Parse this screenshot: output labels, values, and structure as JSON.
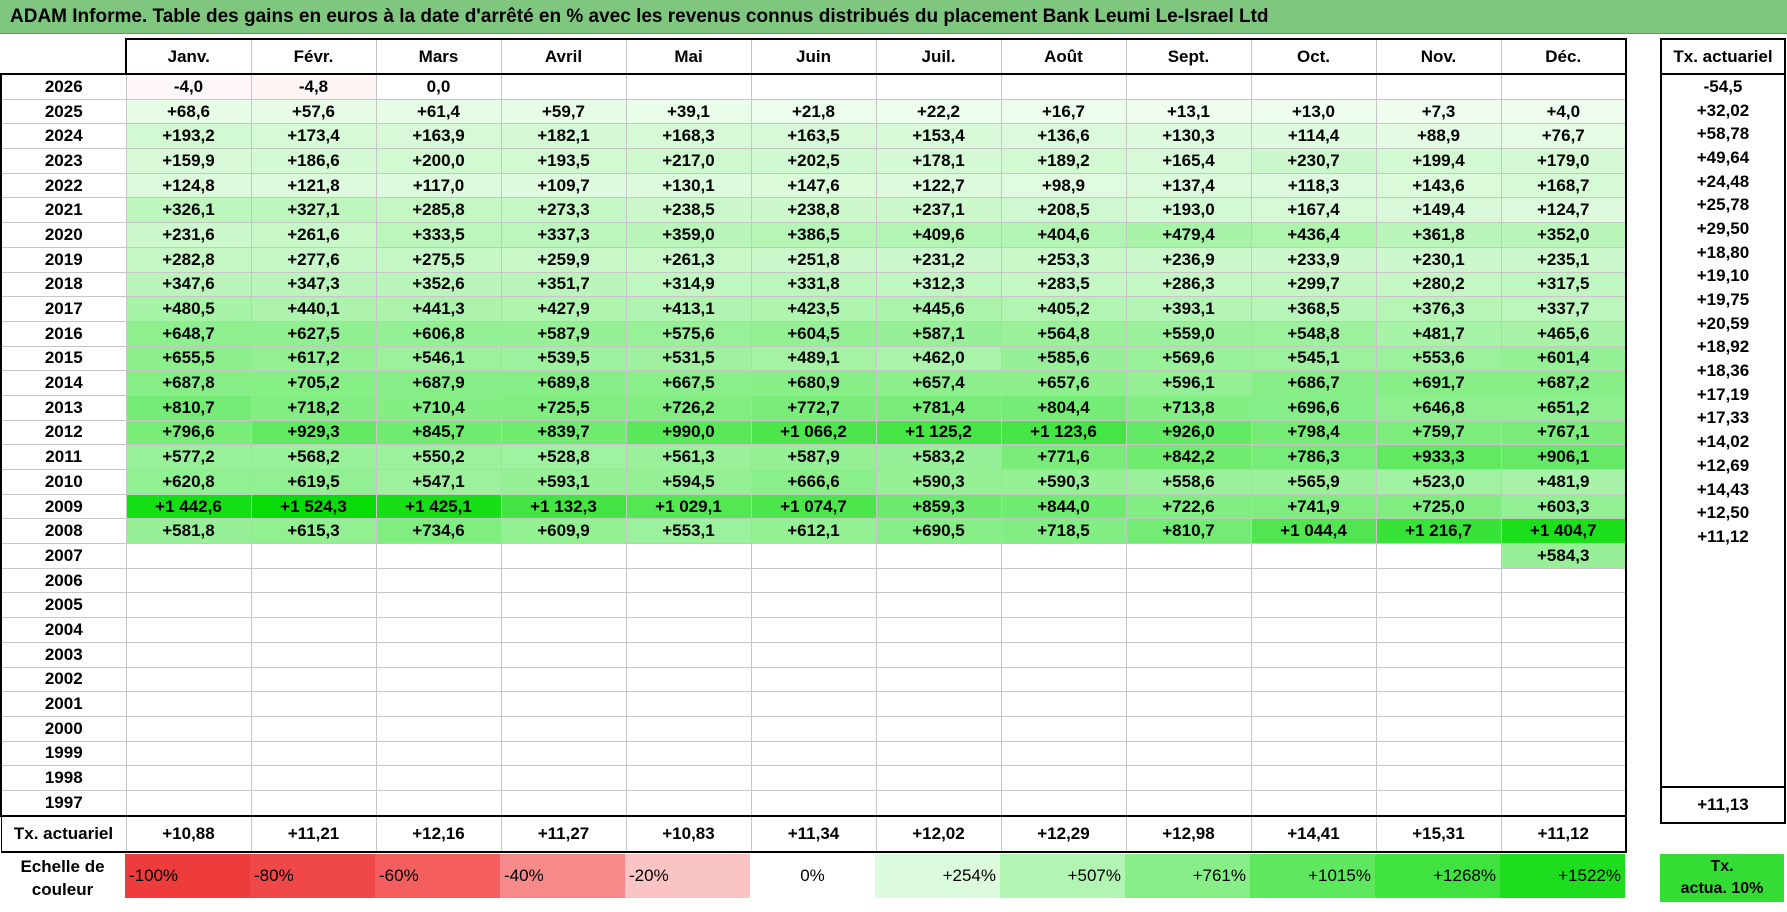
{
  "title": "ADAM Informe. Table des gains en euros à la date d'arrêté en % avec les revenus connus distribués du placement Bank Leumi Le-Israel Ltd",
  "months": [
    "Janv.",
    "Févr.",
    "Mars",
    "Avril",
    "Mai",
    "Juin",
    "Juil.",
    "Août",
    "Sept.",
    "Oct.",
    "Nov.",
    "Déc."
  ],
  "side_header": "Tx. actuariel",
  "rows": [
    {
      "year": "2026",
      "values": [
        "-4,0",
        "-4,8",
        "0,0",
        "",
        "",
        "",
        "",
        "",
        "",
        "",
        "",
        ""
      ],
      "rate": "-54,5"
    },
    {
      "year": "2025",
      "values": [
        "+68,6",
        "+57,6",
        "+61,4",
        "+59,7",
        "+39,1",
        "+21,8",
        "+22,2",
        "+16,7",
        "+13,1",
        "+13,0",
        "+7,3",
        "+4,0"
      ],
      "rate": "+32,02"
    },
    {
      "year": "2024",
      "values": [
        "+193,2",
        "+173,4",
        "+163,9",
        "+182,1",
        "+168,3",
        "+163,5",
        "+153,4",
        "+136,6",
        "+130,3",
        "+114,4",
        "+88,9",
        "+76,7"
      ],
      "rate": "+58,78"
    },
    {
      "year": "2023",
      "values": [
        "+159,9",
        "+186,6",
        "+200,0",
        "+193,5",
        "+217,0",
        "+202,5",
        "+178,1",
        "+189,2",
        "+165,4",
        "+230,7",
        "+199,4",
        "+179,0"
      ],
      "rate": "+49,64"
    },
    {
      "year": "2022",
      "values": [
        "+124,8",
        "+121,8",
        "+117,0",
        "+109,7",
        "+130,1",
        "+147,6",
        "+122,7",
        "+98,9",
        "+137,4",
        "+118,3",
        "+143,6",
        "+168,7"
      ],
      "rate": "+24,48"
    },
    {
      "year": "2021",
      "values": [
        "+326,1",
        "+327,1",
        "+285,8",
        "+273,3",
        "+238,5",
        "+238,8",
        "+237,1",
        "+208,5",
        "+193,0",
        "+167,4",
        "+149,4",
        "+124,7"
      ],
      "rate": "+25,78"
    },
    {
      "year": "2020",
      "values": [
        "+231,6",
        "+261,6",
        "+333,5",
        "+337,3",
        "+359,0",
        "+386,5",
        "+409,6",
        "+404,6",
        "+479,4",
        "+436,4",
        "+361,8",
        "+352,0"
      ],
      "rate": "+29,50"
    },
    {
      "year": "2019",
      "values": [
        "+282,8",
        "+277,6",
        "+275,5",
        "+259,9",
        "+261,3",
        "+251,8",
        "+231,2",
        "+253,3",
        "+236,9",
        "+233,9",
        "+230,1",
        "+235,1"
      ],
      "rate": "+18,80"
    },
    {
      "year": "2018",
      "values": [
        "+347,6",
        "+347,3",
        "+352,6",
        "+351,7",
        "+314,9",
        "+331,8",
        "+312,3",
        "+283,5",
        "+286,3",
        "+299,7",
        "+280,2",
        "+317,5"
      ],
      "rate": "+19,10"
    },
    {
      "year": "2017",
      "values": [
        "+480,5",
        "+440,1",
        "+441,3",
        "+427,9",
        "+413,1",
        "+423,5",
        "+445,6",
        "+405,2",
        "+393,1",
        "+368,5",
        "+376,3",
        "+337,7"
      ],
      "rate": "+19,75"
    },
    {
      "year": "2016",
      "values": [
        "+648,7",
        "+627,5",
        "+606,8",
        "+587,9",
        "+575,6",
        "+604,5",
        "+587,1",
        "+564,8",
        "+559,0",
        "+548,8",
        "+481,7",
        "+465,6"
      ],
      "rate": "+20,59"
    },
    {
      "year": "2015",
      "values": [
        "+655,5",
        "+617,2",
        "+546,1",
        "+539,5",
        "+531,5",
        "+489,1",
        "+462,0",
        "+585,6",
        "+569,6",
        "+545,1",
        "+553,6",
        "+601,4"
      ],
      "rate": "+18,92"
    },
    {
      "year": "2014",
      "values": [
        "+687,8",
        "+705,2",
        "+687,9",
        "+689,8",
        "+667,5",
        "+680,9",
        "+657,4",
        "+657,6",
        "+596,1",
        "+686,7",
        "+691,7",
        "+687,2"
      ],
      "rate": "+18,36"
    },
    {
      "year": "2013",
      "values": [
        "+810,7",
        "+718,2",
        "+710,4",
        "+725,5",
        "+726,2",
        "+772,7",
        "+781,4",
        "+804,4",
        "+713,8",
        "+696,6",
        "+646,8",
        "+651,2"
      ],
      "rate": "+17,19"
    },
    {
      "year": "2012",
      "values": [
        "+796,6",
        "+929,3",
        "+845,7",
        "+839,7",
        "+990,0",
        "+1 066,2",
        "+1 125,2",
        "+1 123,6",
        "+926,0",
        "+798,4",
        "+759,7",
        "+767,1"
      ],
      "rate": "+17,33"
    },
    {
      "year": "2011",
      "values": [
        "+577,2",
        "+568,2",
        "+550,2",
        "+528,8",
        "+561,3",
        "+587,9",
        "+583,2",
        "+771,6",
        "+842,2",
        "+786,3",
        "+933,3",
        "+906,1"
      ],
      "rate": "+14,02"
    },
    {
      "year": "2010",
      "values": [
        "+620,8",
        "+619,5",
        "+547,1",
        "+593,1",
        "+594,5",
        "+666,6",
        "+590,3",
        "+590,3",
        "+558,6",
        "+565,9",
        "+523,0",
        "+481,9"
      ],
      "rate": "+12,69"
    },
    {
      "year": "2009",
      "values": [
        "+1 442,6",
        "+1 524,3",
        "+1 425,1",
        "+1 132,3",
        "+1 029,1",
        "+1 074,7",
        "+859,3",
        "+844,0",
        "+722,6",
        "+741,9",
        "+725,0",
        "+603,3"
      ],
      "rate": "+14,43"
    },
    {
      "year": "2008",
      "values": [
        "+581,8",
        "+615,3",
        "+734,6",
        "+609,9",
        "+553,1",
        "+612,1",
        "+690,5",
        "+718,5",
        "+810,7",
        "+1 044,4",
        "+1 216,7",
        "+1 404,7"
      ],
      "rate": "+12,50"
    },
    {
      "year": "2007",
      "values": [
        "",
        "",
        "",
        "",
        "",
        "",
        "",
        "",
        "",
        "",
        "",
        "+584,3"
      ],
      "rate": "+11,12"
    },
    {
      "year": "2006",
      "values": [
        "",
        "",
        "",
        "",
        "",
        "",
        "",
        "",
        "",
        "",
        "",
        ""
      ],
      "rate": ""
    },
    {
      "year": "2005",
      "values": [
        "",
        "",
        "",
        "",
        "",
        "",
        "",
        "",
        "",
        "",
        "",
        ""
      ],
      "rate": ""
    },
    {
      "year": "2004",
      "values": [
        "",
        "",
        "",
        "",
        "",
        "",
        "",
        "",
        "",
        "",
        "",
        ""
      ],
      "rate": ""
    },
    {
      "year": "2003",
      "values": [
        "",
        "",
        "",
        "",
        "",
        "",
        "",
        "",
        "",
        "",
        "",
        ""
      ],
      "rate": ""
    },
    {
      "year": "2002",
      "values": [
        "",
        "",
        "",
        "",
        "",
        "",
        "",
        "",
        "",
        "",
        "",
        ""
      ],
      "rate": ""
    },
    {
      "year": "2001",
      "values": [
        "",
        "",
        "",
        "",
        "",
        "",
        "",
        "",
        "",
        "",
        "",
        ""
      ],
      "rate": ""
    },
    {
      "year": "2000",
      "values": [
        "",
        "",
        "",
        "",
        "",
        "",
        "",
        "",
        "",
        "",
        "",
        ""
      ],
      "rate": ""
    },
    {
      "year": "1999",
      "values": [
        "",
        "",
        "",
        "",
        "",
        "",
        "",
        "",
        "",
        "",
        "",
        ""
      ],
      "rate": ""
    },
    {
      "year": "1998",
      "values": [
        "",
        "",
        "",
        "",
        "",
        "",
        "",
        "",
        "",
        "",
        "",
        ""
      ],
      "rate": ""
    },
    {
      "year": "1997",
      "values": [
        "",
        "",
        "",
        "",
        "",
        "",
        "",
        "",
        "",
        "",
        "",
        ""
      ],
      "rate": ""
    }
  ],
  "totals": {
    "label": "Tx. actuariel",
    "values": [
      "+10,88",
      "+11,21",
      "+12,16",
      "+11,27",
      "+10,83",
      "+11,34",
      "+12,02",
      "+12,29",
      "+12,98",
      "+14,41",
      "+15,31",
      "+11,12"
    ],
    "overall": "+11,13"
  },
  "scale": {
    "label": "Echelle de couleur",
    "steps": [
      {
        "label": "-100%",
        "color": "#ee3b3b",
        "kind": "neg"
      },
      {
        "label": "-80%",
        "color": "#f04848",
        "kind": "neg"
      },
      {
        "label": "-60%",
        "color": "#f45e5e",
        "kind": "neg"
      },
      {
        "label": "-40%",
        "color": "#f68a8a",
        "kind": "neg"
      },
      {
        "label": "-20%",
        "color": "#fbc4c4",
        "kind": "neg"
      },
      {
        "label": "0%",
        "color": "#ffffff",
        "kind": "zero"
      },
      {
        "label": "+254%",
        "color": "#dcfadc",
        "kind": "pos"
      },
      {
        "label": "+507%",
        "color": "#b2f5b2",
        "kind": "pos"
      },
      {
        "label": "+761%",
        "color": "#88ef88",
        "kind": "pos"
      },
      {
        "label": "+1015%",
        "color": "#5fe85f",
        "kind": "pos"
      },
      {
        "label": "+1268%",
        "color": "#40e240",
        "kind": "pos"
      },
      {
        "label": "+1522%",
        "color": "#1edc1e",
        "kind": "pos"
      }
    ],
    "actua": {
      "line1": "Tx.",
      "line2": "actua. 10%",
      "color": "#33dd33"
    }
  }
}
